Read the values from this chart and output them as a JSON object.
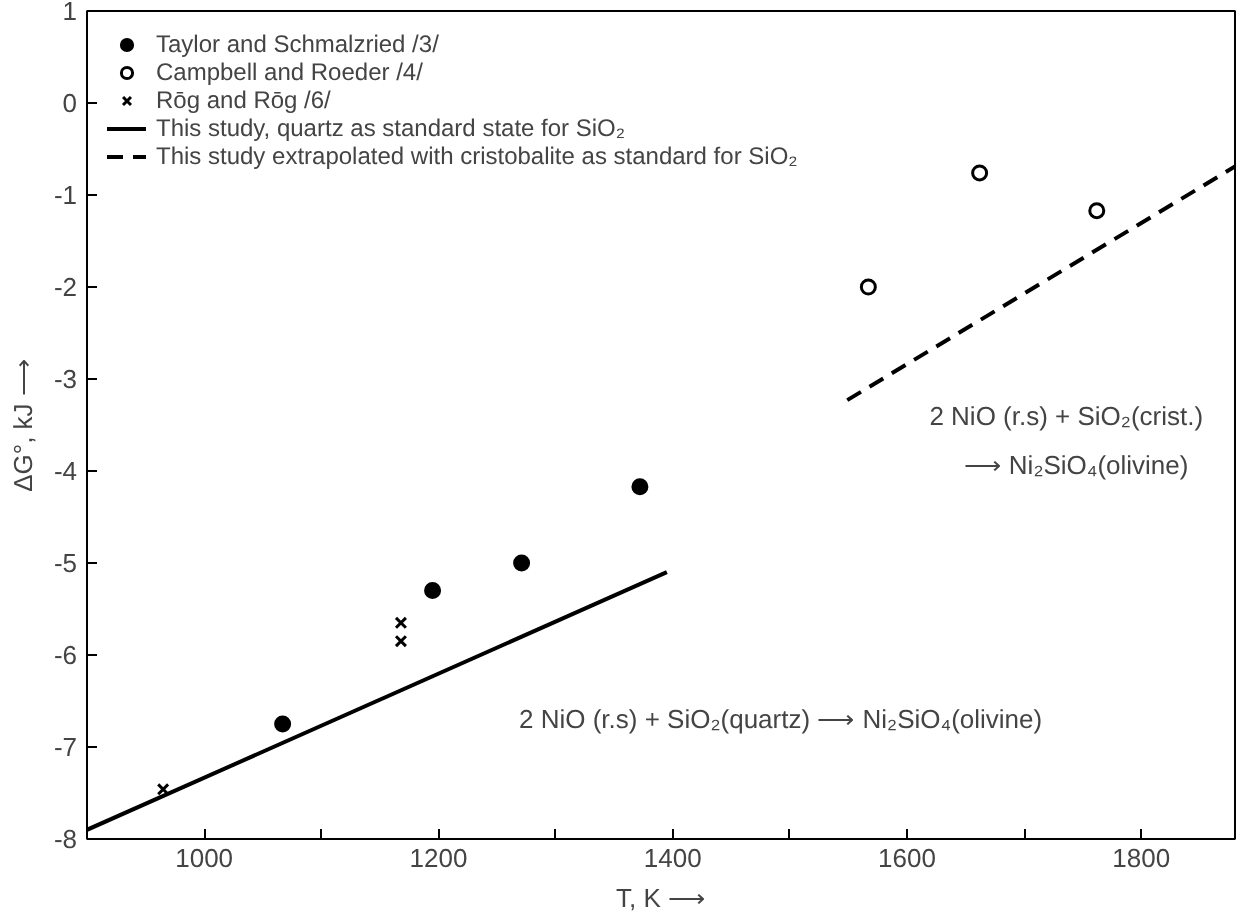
{
  "chart_data": {
    "type": "scatter",
    "xlabel": "T, K ⟶",
    "ylabel": "ΔG°, kJ ⟶",
    "xlim": [
      900,
      1880
    ],
    "ylim": [
      -8,
      1
    ],
    "xticks": [
      {
        "value": 900,
        "label": null
      },
      1000,
      {
        "value": 1100,
        "label": null
      },
      1200,
      {
        "value": 1300,
        "label": null
      },
      1400,
      {
        "value": 1500,
        "label": null
      },
      1600,
      {
        "value": 1700,
        "label": null
      },
      1800
    ],
    "yticks": [
      -8,
      -7,
      -6,
      -5,
      -4,
      -3,
      -2,
      -1,
      0,
      1
    ],
    "grid": false,
    "legend": "top left",
    "series": [
      {
        "name": "Taylor and Schmalzried /3/",
        "marker": "circle",
        "color": "#000000",
        "x": [
          1067,
          1195,
          1271,
          1372
        ],
        "values": [
          -6.75,
          -5.3,
          -5.0,
          -4.17
        ]
      },
      {
        "name": "Campbell and Roeder /4/",
        "marker": "circle_open",
        "color": "#000000",
        "x": [
          1567,
          1662,
          1762
        ],
        "values": [
          -2.0,
          -0.76,
          -1.17
        ]
      },
      {
        "name": "Rōg and Rōg /6/",
        "marker": "x",
        "color": "#000000",
        "x": [
          965,
          1168,
          1168
        ],
        "values": [
          -7.46,
          -5.65,
          -5.85
        ]
      },
      {
        "name": "This study, quartz as standard state for SiO₂",
        "type": "line",
        "line_style": "solid",
        "color": "#000000",
        "x": [
          900,
          1395
        ],
        "values": [
          -7.9,
          -5.1
        ]
      },
      {
        "name": "This study extrapolated with cristobalite as standard for SiO₂",
        "type": "line",
        "line_style": "dashed",
        "color": "#000000",
        "x": [
          1549,
          1880
        ],
        "values": [
          -3.23,
          -0.69
        ]
      }
    ],
    "annotations": [
      "2 NiO (r.s) + SiO₂(quartz) ⟶ Ni₂SiO₄(olivine)",
      "2 NiO (r.s) + SiO₂(crist.)",
      "⟶ Ni₂SiO₄(olivine)"
    ]
  }
}
